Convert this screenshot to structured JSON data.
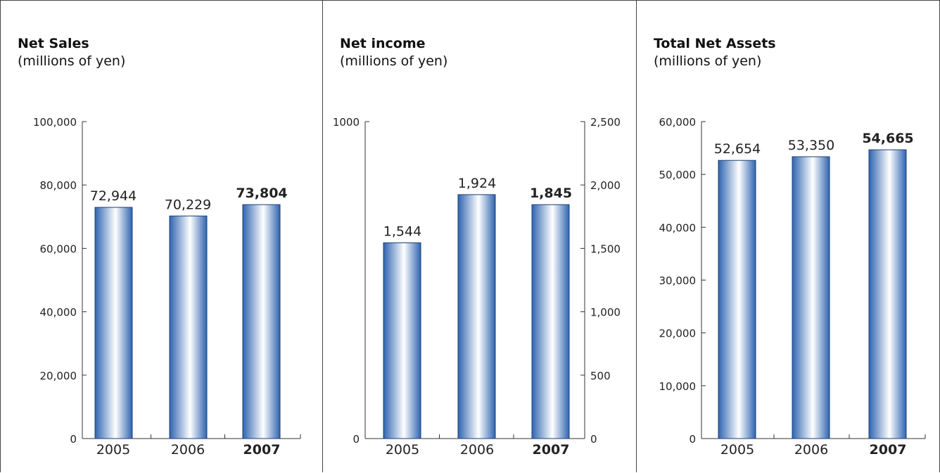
{
  "colors": {
    "bar_dark": "#2f64b0",
    "bar_light": "#ffffff",
    "axis": "#333333",
    "frame": "#444444"
  },
  "chart_data": [
    {
      "type": "bar",
      "title": "Net Sales",
      "subtitle": "(millions of yen)",
      "categories": [
        "2005",
        "2006",
        "2007"
      ],
      "values": [
        72944,
        70229,
        73804
      ],
      "value_labels": [
        "72,944",
        "70,229",
        "73,804"
      ],
      "highlight": "2007",
      "ylim": [
        0,
        100000
      ],
      "yticks": [
        0,
        20000,
        40000,
        60000,
        80000,
        100000
      ],
      "ytick_labels": [
        "0",
        "20,000",
        "40,000",
        "60,000",
        "80,000",
        "100,000"
      ],
      "axis_side": "left",
      "grid": false
    },
    {
      "type": "bar",
      "title": "Net income",
      "subtitle": "(millions of yen)",
      "categories": [
        "2005",
        "2006",
        "2007"
      ],
      "values": [
        1544,
        1924,
        1845
      ],
      "value_labels": [
        "1,544",
        "1,924",
        "1,845"
      ],
      "highlight": "2007",
      "ylim": [
        0,
        2500
      ],
      "yticks": [
        0,
        500,
        1000,
        1500,
        2000,
        2500
      ],
      "ytick_labels": [
        "0",
        "500",
        "1,000",
        "1,500",
        "2,000",
        "2,500"
      ],
      "axis_side": "right",
      "left_axis_labels": [
        "0",
        "1000"
      ],
      "grid": false
    },
    {
      "type": "bar",
      "title": "Total Net Assets",
      "subtitle": "(millions of yen)",
      "categories": [
        "2005",
        "2006",
        "2007"
      ],
      "values": [
        52654,
        53350,
        54665
      ],
      "value_labels": [
        "52,654",
        "53,350",
        "54,665"
      ],
      "highlight": "2007",
      "ylim": [
        0,
        60000
      ],
      "yticks": [
        0,
        10000,
        20000,
        30000,
        40000,
        50000,
        60000
      ],
      "ytick_labels": [
        "0",
        "10,000",
        "20,000",
        "30,000",
        "40,000",
        "50,000",
        "60,000"
      ],
      "axis_side": "left",
      "grid": false
    }
  ]
}
